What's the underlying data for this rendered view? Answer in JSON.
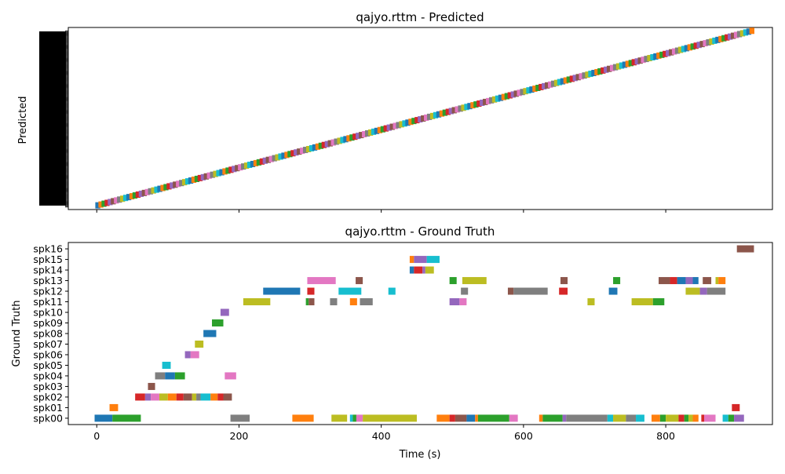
{
  "chart_data": [
    {
      "type": "gantt",
      "title": "qajyo.rttm - Predicted",
      "ylabel": "Predicted",
      "xlim": [
        -40,
        950
      ],
      "x_ticks": [
        0,
        200,
        400,
        600,
        800
      ],
      "start_x": -2,
      "end_x": 922,
      "start_y": 2,
      "end_y": 211,
      "n_rows": 212,
      "ylim": [
        -3,
        215
      ],
      "segment_count": 212,
      "colors": [
        "#1f77b4",
        "#ff7f0e",
        "#2ca02c",
        "#d62728",
        "#9467bd",
        "#8c564b",
        "#e377c2",
        "#7f7f7f",
        "#bcbd22",
        "#17becf"
      ]
    },
    {
      "type": "gantt",
      "title": "qajyo.rttm - Ground Truth",
      "ylabel": "Ground Truth",
      "xlabel": "Time (s)",
      "xlim": [
        -40,
        950
      ],
      "x_ticks": [
        0,
        200,
        400,
        600,
        800
      ],
      "x_tick_labels": [
        "0",
        "200",
        "400",
        "600",
        "800"
      ],
      "ylim": [
        -0.6,
        16.6
      ],
      "speakers": [
        "spk00",
        "spk01",
        "spk02",
        "spk03",
        "spk04",
        "spk05",
        "spk06",
        "spk07",
        "spk08",
        "spk09",
        "spk10",
        "spk11",
        "spk12",
        "spk13",
        "spk14",
        "spk15",
        "spk16"
      ],
      "segments": [
        {
          "spk": 0,
          "start": -3,
          "end": 22,
          "color": "#1f77b4"
        },
        {
          "spk": 0,
          "start": 22,
          "end": 62,
          "color": "#2ca02c"
        },
        {
          "spk": 0,
          "start": 188,
          "end": 215,
          "color": "#7f7f7f"
        },
        {
          "spk": 0,
          "start": 275,
          "end": 305,
          "color": "#ff7f0e"
        },
        {
          "spk": 0,
          "start": 330,
          "end": 352,
          "color": "#bcbd22"
        },
        {
          "spk": 0,
          "start": 356,
          "end": 360,
          "color": "#17becf"
        },
        {
          "spk": 0,
          "start": 360,
          "end": 365,
          "color": "#2ca02c"
        },
        {
          "spk": 0,
          "start": 365,
          "end": 374,
          "color": "#e377c2"
        },
        {
          "spk": 0,
          "start": 374,
          "end": 450,
          "color": "#bcbd22"
        },
        {
          "spk": 0,
          "start": 478,
          "end": 496,
          "color": "#ff7f0e"
        },
        {
          "spk": 0,
          "start": 496,
          "end": 504,
          "color": "#d62728"
        },
        {
          "spk": 0,
          "start": 504,
          "end": 520,
          "color": "#8c564b"
        },
        {
          "spk": 0,
          "start": 520,
          "end": 532,
          "color": "#1f77b4"
        },
        {
          "spk": 0,
          "start": 532,
          "end": 536,
          "color": "#ff7f0e"
        },
        {
          "spk": 0,
          "start": 536,
          "end": 580,
          "color": "#2ca02c"
        },
        {
          "spk": 0,
          "start": 580,
          "end": 592,
          "color": "#e377c2"
        },
        {
          "spk": 0,
          "start": 622,
          "end": 627,
          "color": "#ff7f0e"
        },
        {
          "spk": 0,
          "start": 627,
          "end": 655,
          "color": "#2ca02c"
        },
        {
          "spk": 0,
          "start": 655,
          "end": 660,
          "color": "#9467bd"
        },
        {
          "spk": 0,
          "start": 660,
          "end": 718,
          "color": "#7f7f7f"
        },
        {
          "spk": 0,
          "start": 718,
          "end": 726,
          "color": "#17becf"
        },
        {
          "spk": 0,
          "start": 726,
          "end": 744,
          "color": "#bcbd22"
        },
        {
          "spk": 0,
          "start": 744,
          "end": 758,
          "color": "#7f7f7f"
        },
        {
          "spk": 0,
          "start": 758,
          "end": 770,
          "color": "#17becf"
        },
        {
          "spk": 0,
          "start": 780,
          "end": 792,
          "color": "#ff7f0e"
        },
        {
          "spk": 0,
          "start": 792,
          "end": 800,
          "color": "#2ca02c"
        },
        {
          "spk": 0,
          "start": 800,
          "end": 818,
          "color": "#bcbd22"
        },
        {
          "spk": 0,
          "start": 818,
          "end": 826,
          "color": "#d62728"
        },
        {
          "spk": 0,
          "start": 826,
          "end": 832,
          "color": "#2ca02c"
        },
        {
          "spk": 0,
          "start": 832,
          "end": 838,
          "color": "#bcbd22"
        },
        {
          "spk": 0,
          "start": 838,
          "end": 846,
          "color": "#ff7f0e"
        },
        {
          "spk": 0,
          "start": 850,
          "end": 854,
          "color": "#d62728"
        },
        {
          "spk": 0,
          "start": 854,
          "end": 870,
          "color": "#e377c2"
        },
        {
          "spk": 0,
          "start": 880,
          "end": 888,
          "color": "#17becf"
        },
        {
          "spk": 0,
          "start": 888,
          "end": 896,
          "color": "#2ca02c"
        },
        {
          "spk": 0,
          "start": 896,
          "end": 910,
          "color": "#9467bd"
        },
        {
          "spk": 1,
          "start": 18,
          "end": 30,
          "color": "#ff7f0e"
        },
        {
          "spk": 1,
          "start": 893,
          "end": 904,
          "color": "#d62728"
        },
        {
          "spk": 2,
          "start": 54,
          "end": 68,
          "color": "#d62728"
        },
        {
          "spk": 2,
          "start": 68,
          "end": 76,
          "color": "#9467bd"
        },
        {
          "spk": 2,
          "start": 76,
          "end": 88,
          "color": "#e377c2"
        },
        {
          "spk": 2,
          "start": 88,
          "end": 100,
          "color": "#bcbd22"
        },
        {
          "spk": 2,
          "start": 100,
          "end": 112,
          "color": "#ff7f0e"
        },
        {
          "spk": 2,
          "start": 112,
          "end": 122,
          "color": "#d62728"
        },
        {
          "spk": 2,
          "start": 122,
          "end": 134,
          "color": "#8c564b"
        },
        {
          "spk": 2,
          "start": 134,
          "end": 140,
          "color": "#bcbd22"
        },
        {
          "spk": 2,
          "start": 140,
          "end": 146,
          "color": "#7f7f7f"
        },
        {
          "spk": 2,
          "start": 146,
          "end": 160,
          "color": "#17becf"
        },
        {
          "spk": 2,
          "start": 160,
          "end": 170,
          "color": "#ff7f0e"
        },
        {
          "spk": 2,
          "start": 170,
          "end": 178,
          "color": "#d62728"
        },
        {
          "spk": 2,
          "start": 178,
          "end": 190,
          "color": "#8c564b"
        },
        {
          "spk": 3,
          "start": 72,
          "end": 82,
          "color": "#8c564b"
        },
        {
          "spk": 4,
          "start": 82,
          "end": 96,
          "color": "#7f7f7f"
        },
        {
          "spk": 4,
          "start": 96,
          "end": 110,
          "color": "#1f77b4"
        },
        {
          "spk": 4,
          "start": 110,
          "end": 124,
          "color": "#2ca02c"
        },
        {
          "spk": 4,
          "start": 180,
          "end": 196,
          "color": "#e377c2"
        },
        {
          "spk": 5,
          "start": 92,
          "end": 104,
          "color": "#17becf"
        },
        {
          "spk": 6,
          "start": 124,
          "end": 132,
          "color": "#9467bd"
        },
        {
          "spk": 6,
          "start": 132,
          "end": 144,
          "color": "#e377c2"
        },
        {
          "spk": 7,
          "start": 138,
          "end": 150,
          "color": "#bcbd22"
        },
        {
          "spk": 8,
          "start": 150,
          "end": 168,
          "color": "#1f77b4"
        },
        {
          "spk": 9,
          "start": 162,
          "end": 178,
          "color": "#2ca02c"
        },
        {
          "spk": 10,
          "start": 174,
          "end": 186,
          "color": "#9467bd"
        },
        {
          "spk": 11,
          "start": 206,
          "end": 244,
          "color": "#bcbd22"
        },
        {
          "spk": 11,
          "start": 294,
          "end": 298,
          "color": "#2ca02c"
        },
        {
          "spk": 11,
          "start": 298,
          "end": 306,
          "color": "#8c564b"
        },
        {
          "spk": 11,
          "start": 328,
          "end": 338,
          "color": "#7f7f7f"
        },
        {
          "spk": 11,
          "start": 356,
          "end": 366,
          "color": "#ff7f0e"
        },
        {
          "spk": 11,
          "start": 370,
          "end": 388,
          "color": "#7f7f7f"
        },
        {
          "spk": 11,
          "start": 496,
          "end": 510,
          "color": "#9467bd"
        },
        {
          "spk": 11,
          "start": 510,
          "end": 520,
          "color": "#e377c2"
        },
        {
          "spk": 11,
          "start": 690,
          "end": 700,
          "color": "#bcbd22"
        },
        {
          "spk": 11,
          "start": 752,
          "end": 782,
          "color": "#bcbd22"
        },
        {
          "spk": 11,
          "start": 782,
          "end": 798,
          "color": "#2ca02c"
        },
        {
          "spk": 12,
          "start": 234,
          "end": 286,
          "color": "#1f77b4"
        },
        {
          "spk": 12,
          "start": 296,
          "end": 306,
          "color": "#d62728"
        },
        {
          "spk": 12,
          "start": 340,
          "end": 372,
          "color": "#17becf"
        },
        {
          "spk": 12,
          "start": 410,
          "end": 420,
          "color": "#17becf"
        },
        {
          "spk": 12,
          "start": 512,
          "end": 522,
          "color": "#7f7f7f"
        },
        {
          "spk": 12,
          "start": 578,
          "end": 586,
          "color": "#8c564b"
        },
        {
          "spk": 12,
          "start": 586,
          "end": 634,
          "color": "#7f7f7f"
        },
        {
          "spk": 12,
          "start": 650,
          "end": 662,
          "color": "#d62728"
        },
        {
          "spk": 12,
          "start": 720,
          "end": 732,
          "color": "#1f77b4"
        },
        {
          "spk": 12,
          "start": 828,
          "end": 848,
          "color": "#bcbd22"
        },
        {
          "spk": 12,
          "start": 848,
          "end": 858,
          "color": "#9467bd"
        },
        {
          "spk": 12,
          "start": 858,
          "end": 884,
          "color": "#7f7f7f"
        },
        {
          "spk": 13,
          "start": 296,
          "end": 336,
          "color": "#e377c2"
        },
        {
          "spk": 13,
          "start": 364,
          "end": 374,
          "color": "#8c564b"
        },
        {
          "spk": 13,
          "start": 496,
          "end": 506,
          "color": "#2ca02c"
        },
        {
          "spk": 13,
          "start": 514,
          "end": 548,
          "color": "#bcbd22"
        },
        {
          "spk": 13,
          "start": 652,
          "end": 662,
          "color": "#8c564b"
        },
        {
          "spk": 13,
          "start": 726,
          "end": 736,
          "color": "#2ca02c"
        },
        {
          "spk": 13,
          "start": 790,
          "end": 806,
          "color": "#8c564b"
        },
        {
          "spk": 13,
          "start": 806,
          "end": 816,
          "color": "#d62728"
        },
        {
          "spk": 13,
          "start": 816,
          "end": 828,
          "color": "#1f77b4"
        },
        {
          "spk": 13,
          "start": 828,
          "end": 838,
          "color": "#9467bd"
        },
        {
          "spk": 13,
          "start": 838,
          "end": 846,
          "color": "#1f77b4"
        },
        {
          "spk": 13,
          "start": 852,
          "end": 864,
          "color": "#8c564b"
        },
        {
          "spk": 13,
          "start": 870,
          "end": 874,
          "color": "#bcbd22"
        },
        {
          "spk": 13,
          "start": 874,
          "end": 884,
          "color": "#ff7f0e"
        },
        {
          "spk": 14,
          "start": 440,
          "end": 446,
          "color": "#1f77b4"
        },
        {
          "spk": 14,
          "start": 446,
          "end": 458,
          "color": "#d62728"
        },
        {
          "spk": 14,
          "start": 458,
          "end": 462,
          "color": "#9467bd"
        },
        {
          "spk": 14,
          "start": 462,
          "end": 474,
          "color": "#bcbd22"
        },
        {
          "spk": 15,
          "start": 440,
          "end": 446,
          "color": "#ff7f0e"
        },
        {
          "spk": 15,
          "start": 446,
          "end": 464,
          "color": "#9467bd"
        },
        {
          "spk": 15,
          "start": 464,
          "end": 482,
          "color": "#17becf"
        },
        {
          "spk": 16,
          "start": 900,
          "end": 924,
          "color": "#8c564b"
        }
      ]
    }
  ]
}
